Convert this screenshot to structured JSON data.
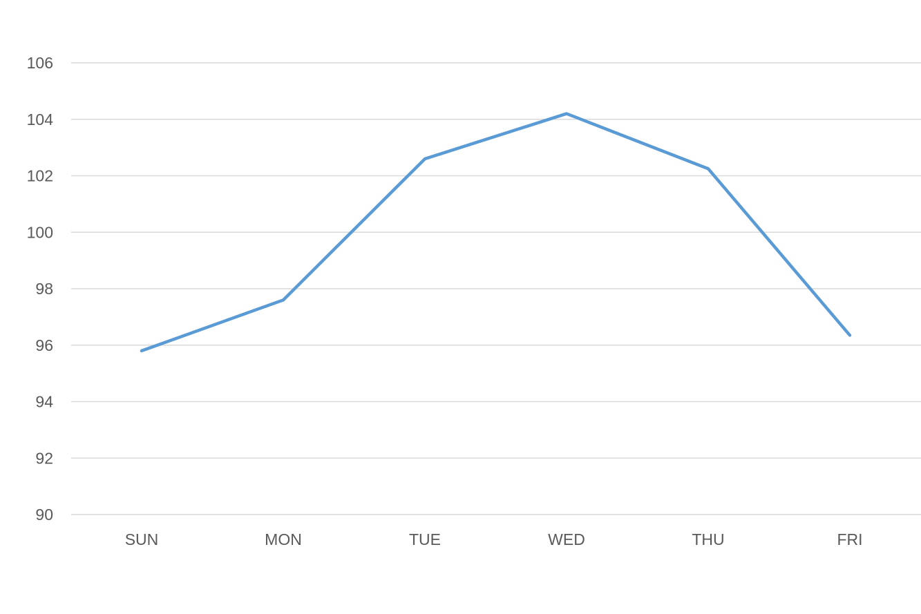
{
  "chart_data": {
    "type": "line",
    "title": "",
    "xlabel": "",
    "ylabel": "",
    "categories": [
      "SUN",
      "MON",
      "TUE",
      "WED",
      "THU",
      "FRI"
    ],
    "series": [
      {
        "values": [
          95.8,
          97.6,
          102.6,
          104.2,
          102.25,
          96.35
        ],
        "color": "#5b9bd5"
      }
    ],
    "ylim": [
      90,
      106
    ],
    "yticks": [
      90,
      92,
      94,
      96,
      98,
      100,
      102,
      104,
      106
    ],
    "grid": true,
    "legend": "none"
  }
}
